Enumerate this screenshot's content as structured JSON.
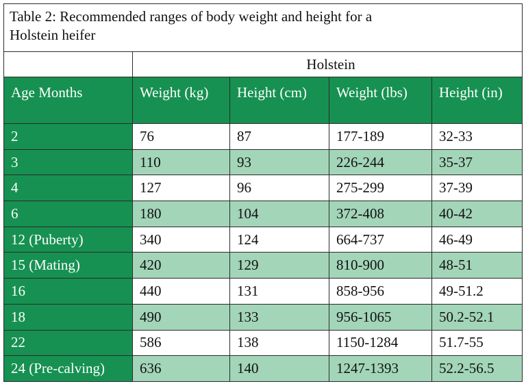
{
  "title": "Table 2: Recommended ranges of body weight and height for a Holstein heifer",
  "table": {
    "group_header": "Holstein",
    "header": [
      "Age Months",
      "Weight (kg)",
      "Height (cm)",
      "Weight (lbs)",
      "Height (in)"
    ],
    "rows": [
      [
        "2",
        "76",
        "87",
        "177-189",
        "32-33"
      ],
      [
        "3",
        "110",
        "93",
        "226-244",
        "35-37"
      ],
      [
        "4",
        "127",
        "96",
        "275-299",
        "37-39"
      ],
      [
        "6",
        "180",
        "104",
        "372-408",
        "40-42"
      ],
      [
        "12 (Puberty)",
        "340",
        "124",
        "664-737",
        "46-49"
      ],
      [
        "15 (Mating)",
        "420",
        "129",
        "810-900",
        "48-51"
      ],
      [
        "16",
        "440",
        "131",
        "858-956",
        "49-51.2"
      ],
      [
        "18",
        "490",
        "133",
        "956-1065",
        "50.2-52.1"
      ],
      [
        "22",
        "586",
        "138",
        "1150-1284",
        "51.7-55"
      ],
      [
        "24 (Pre-calving)",
        "636",
        "140",
        "1247-1393",
        "52.2-56.5"
      ]
    ]
  }
}
